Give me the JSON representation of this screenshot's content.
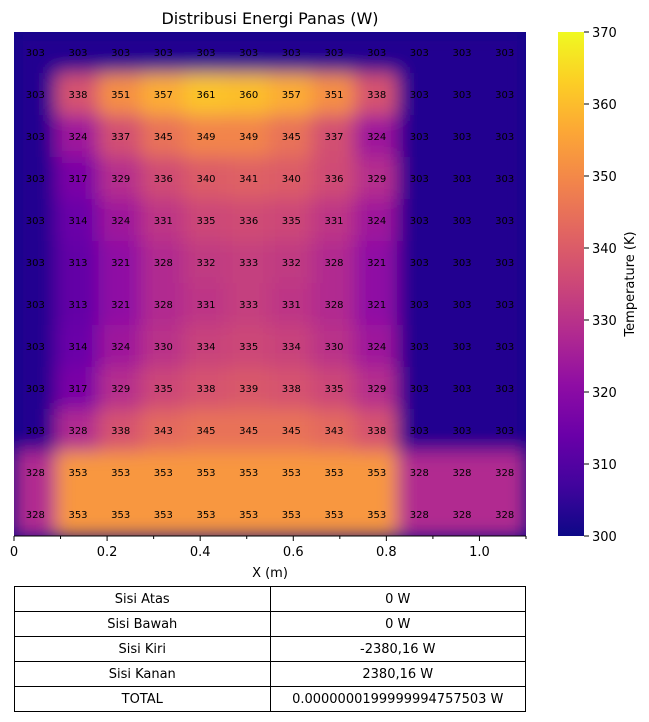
{
  "chart_data": {
    "type": "heatmap",
    "title": "Distribusi Energi Panas (W)",
    "xlabel": "X (m)",
    "ylabel": "",
    "xlim": [
      0,
      1.1
    ],
    "x_ticks": [
      0,
      0.2,
      0.4,
      0.6,
      0.8,
      1.0
    ],
    "x_tick_labels": [
      "0",
      "0.2",
      "0.4",
      "0.6",
      "0.8",
      "1.0"
    ],
    "colorbar": {
      "label": "Temperature (K)",
      "range": [
        300,
        370
      ],
      "ticks": [
        300,
        310,
        320,
        330,
        340,
        350,
        360,
        370
      ],
      "colormap": "plasma"
    },
    "grid": false,
    "values": [
      [
        303,
        303,
        303,
        303,
        303,
        303,
        303,
        303,
        303,
        303,
        303,
        303
      ],
      [
        303,
        338,
        351,
        357,
        361,
        360,
        357,
        351,
        338,
        303,
        303,
        303
      ],
      [
        303,
        324,
        337,
        345,
        349,
        349,
        345,
        337,
        324,
        303,
        303,
        303
      ],
      [
        303,
        317,
        329,
        336,
        340,
        341,
        340,
        336,
        329,
        303,
        303,
        303
      ],
      [
        303,
        314,
        324,
        331,
        335,
        336,
        335,
        331,
        324,
        303,
        303,
        303
      ],
      [
        303,
        313,
        321,
        328,
        332,
        333,
        332,
        328,
        321,
        303,
        303,
        303
      ],
      [
        303,
        313,
        321,
        328,
        331,
        333,
        331,
        328,
        321,
        303,
        303,
        303
      ],
      [
        303,
        314,
        324,
        330,
        334,
        335,
        334,
        330,
        324,
        303,
        303,
        303
      ],
      [
        303,
        317,
        329,
        335,
        338,
        339,
        338,
        335,
        329,
        303,
        303,
        303
      ],
      [
        303,
        328,
        338,
        343,
        345,
        345,
        345,
        343,
        338,
        303,
        303,
        303
      ],
      [
        328,
        353,
        353,
        353,
        353,
        353,
        353,
        353,
        353,
        328,
        328,
        328
      ],
      [
        328,
        353,
        353,
        353,
        353,
        353,
        353,
        353,
        353,
        328,
        328,
        328
      ]
    ]
  },
  "table": {
    "rows": [
      {
        "label": "Sisi Atas",
        "value": "0 W"
      },
      {
        "label": "Sisi Bawah",
        "value": "0 W"
      },
      {
        "label": "Sisi Kiri",
        "value": "-2380,16  W"
      },
      {
        "label": "Sisi Kanan",
        "value": "2380,16  W"
      },
      {
        "label": "TOTAL",
        "value": "0.0000000199999994757503 W"
      }
    ]
  }
}
